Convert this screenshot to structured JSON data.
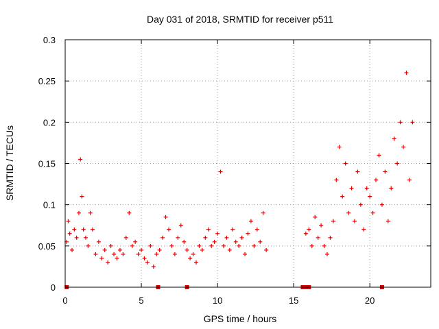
{
  "chart_data": {
    "type": "scatter",
    "title": "Day 031 of 2018, SRMTID for receiver p511",
    "xlabel": "GPS time / hours",
    "ylabel": "SRMTID / TECUs",
    "xlim": [
      0,
      24
    ],
    "ylim": [
      0,
      0.3
    ],
    "x_ticks": [
      0,
      5,
      10,
      15,
      20
    ],
    "x_tick_labels": [
      "0",
      "5",
      "10",
      "15",
      "20"
    ],
    "y_ticks": [
      0,
      0.05,
      0.1,
      0.15,
      0.2,
      0.25,
      0.3
    ],
    "y_tick_labels": [
      "0",
      "0.05",
      "0.1",
      "0.15",
      "0.2",
      "0.25",
      "0.3"
    ],
    "grid": true,
    "series": [
      {
        "name": "SRMTID",
        "color": "#e00000",
        "marker": "plus",
        "x": [
          0.1,
          0.2,
          0.3,
          0.45,
          0.6,
          0.75,
          0.9,
          1.0,
          1.1,
          1.2,
          1.35,
          1.5,
          1.65,
          1.8,
          2.0,
          2.2,
          2.4,
          2.6,
          2.8,
          3.0,
          3.2,
          3.4,
          3.6,
          3.8,
          4.0,
          4.2,
          4.4,
          4.6,
          4.8,
          5.0,
          5.2,
          5.4,
          5.6,
          5.8,
          6.0,
          6.2,
          6.4,
          6.6,
          6.8,
          7.0,
          7.2,
          7.4,
          7.6,
          7.8,
          8.0,
          8.2,
          8.4,
          8.6,
          8.8,
          9.0,
          9.2,
          9.4,
          9.6,
          9.8,
          10.0,
          10.2,
          10.4,
          10.6,
          10.8,
          11.0,
          11.2,
          11.4,
          11.6,
          11.8,
          12.0,
          12.2,
          12.4,
          12.6,
          12.8,
          13.0,
          13.2,
          15.8,
          16.0,
          16.2,
          16.4,
          16.6,
          16.8,
          17.0,
          17.2,
          17.4,
          17.6,
          17.8,
          18.0,
          18.2,
          18.4,
          18.6,
          18.8,
          19.0,
          19.2,
          19.4,
          19.6,
          19.8,
          20.0,
          20.2,
          20.4,
          20.6,
          20.8,
          21.0,
          21.2,
          21.4,
          21.6,
          21.8,
          22.0,
          22.2,
          22.4,
          22.6,
          22.8
        ],
        "y": [
          0.055,
          0.08,
          0.065,
          0.045,
          0.07,
          0.06,
          0.09,
          0.155,
          0.11,
          0.07,
          0.06,
          0.05,
          0.09,
          0.07,
          0.04,
          0.055,
          0.035,
          0.045,
          0.03,
          0.05,
          0.04,
          0.035,
          0.045,
          0.04,
          0.06,
          0.09,
          0.05,
          0.055,
          0.04,
          0.045,
          0.035,
          0.03,
          0.05,
          0.025,
          0.04,
          0.045,
          0.06,
          0.085,
          0.07,
          0.05,
          0.04,
          0.06,
          0.075,
          0.055,
          0.045,
          0.035,
          0.04,
          0.03,
          0.05,
          0.045,
          0.06,
          0.07,
          0.05,
          0.055,
          0.065,
          0.14,
          0.05,
          0.06,
          0.045,
          0.07,
          0.055,
          0.05,
          0.06,
          0.04,
          0.065,
          0.08,
          0.05,
          0.07,
          0.055,
          0.09,
          0.045,
          0.065,
          0.07,
          0.05,
          0.085,
          0.06,
          0.075,
          0.05,
          0.04,
          0.06,
          0.08,
          0.13,
          0.17,
          0.11,
          0.15,
          0.09,
          0.12,
          0.08,
          0.14,
          0.1,
          0.07,
          0.12,
          0.11,
          0.09,
          0.13,
          0.16,
          0.1,
          0.14,
          0.08,
          0.12,
          0.18,
          0.15,
          0.2,
          0.17,
          0.26,
          0.13,
          0.2
        ]
      }
    ],
    "zero_markers_x": [
      0.1,
      6.1,
      8.0,
      15.6,
      15.75,
      16.0,
      20.8
    ]
  }
}
